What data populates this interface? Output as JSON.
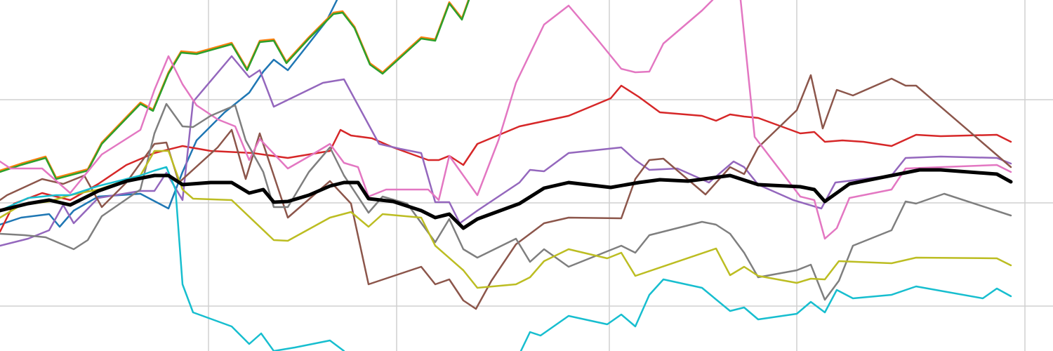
{
  "chart_data": {
    "type": "line",
    "grid": true,
    "xlim": [
      0,
      1500
    ],
    "xticks": [
      297,
      565,
      868,
      1135,
      1460
    ],
    "ylim": [
      0,
      500
    ],
    "yticks": [
      64,
      211,
      358
    ],
    "series": [
      {
        "color": "#1f77b4",
        "width": 2.5,
        "x": [
          0,
          30,
          70,
          85,
          105,
          140,
          200,
          240,
          260,
          280,
          320,
          355,
          375,
          390,
          410,
          440,
          465,
          480
        ],
        "values": [
          180,
          190,
          195,
          177,
          200,
          220,
          224,
          203,
          255,
          300,
          340,
          368,
          398,
          415,
          400,
          438,
          470,
          500
        ]
      },
      {
        "color": "#ff7f0e",
        "width": 2.5,
        "x": [
          0,
          30,
          65,
          80,
          125,
          145,
          200,
          218,
          240,
          258,
          280,
          330,
          352,
          370,
          390,
          408,
          440,
          475,
          488,
          505,
          527,
          545,
          600,
          620,
          640,
          658,
          668
        ],
        "values": [
          257,
          267,
          277,
          247,
          259,
          297,
          354,
          344,
          397,
          427,
          425,
          439,
          402,
          442,
          444,
          412,
          447,
          482,
          484,
          462,
          410,
          397,
          447,
          444,
          497,
          474,
          502
        ]
      },
      {
        "color": "#2ca02c",
        "width": 2.5,
        "x": [
          0,
          30,
          65,
          80,
          125,
          145,
          200,
          218,
          240,
          258,
          280,
          330,
          352,
          370,
          390,
          408,
          440,
          475,
          488,
          505,
          527,
          545,
          600,
          620,
          640,
          658,
          668
        ],
        "values": [
          255,
          265,
          275,
          245,
          257,
          295,
          352,
          342,
          395,
          425,
          423,
          437,
          400,
          440,
          442,
          410,
          445,
          480,
          482,
          460,
          408,
          395,
          445,
          442,
          495,
          472,
          500
        ]
      },
      {
        "color": "#d62728",
        "width": 2.5,
        "x": [
          0,
          20,
          60,
          100,
          140,
          180,
          220,
          260,
          300,
          360,
          410,
          470,
          485,
          500,
          530,
          560,
          610,
          625,
          640,
          660,
          680,
          740,
          810,
          870,
          885,
          910,
          940,
          1000,
          1020,
          1040,
          1060,
          1080,
          1140,
          1160,
          1175,
          1200,
          1230,
          1270,
          1305,
          1340,
          1420,
          1440
        ],
        "values": [
          170,
          210,
          225,
          215,
          238,
          265,
          282,
          292,
          285,
          282,
          275,
          285,
          315,
          307,
          303,
          290,
          272,
          272,
          278,
          265,
          295,
          320,
          335,
          360,
          378,
          362,
          340,
          335,
          328,
          337,
          334,
          332,
          310,
          312,
          298,
          300,
          298,
          292,
          308,
          306,
          308,
          298
        ]
      },
      {
        "color": "#9467bd",
        "width": 2.5,
        "x": [
          0,
          40,
          70,
          90,
          105,
          140,
          200,
          220,
          237,
          260,
          275,
          330,
          355,
          370,
          390,
          460,
          490,
          540,
          570,
          600,
          620,
          640,
          655,
          680,
          740,
          755,
          775,
          810,
          885,
          905,
          925,
          965,
          1010,
          1045,
          1060,
          1080,
          1130,
          1170,
          1190,
          1270,
          1290,
          1340,
          1420,
          1440
        ],
        "values": [
          150,
          160,
          172,
          208,
          182,
          218,
          228,
          228,
          254,
          215,
          355,
          420,
          390,
          400,
          348,
          382,
          387,
          295,
          288,
          282,
          212,
          212,
          182,
          200,
          240,
          258,
          256,
          282,
          290,
          272,
          258,
          260,
          240,
          270,
          262,
          237,
          215,
          203,
          240,
          250,
          275,
          277,
          275,
          267
        ]
      },
      {
        "color": "#8c564b",
        "width": 2.5,
        "x": [
          0,
          10,
          60,
          90,
          120,
          145,
          180,
          220,
          237,
          255,
          310,
          330,
          350,
          370,
          390,
          410,
          470,
          500,
          525,
          600,
          620,
          640,
          660,
          678,
          700,
          735,
          775,
          810,
          885,
          905,
          925,
          945,
          1005,
          1040,
          1060,
          1080,
          1135,
          1155,
          1172,
          1192,
          1215,
          1270,
          1290,
          1305,
          1440
        ],
        "values": [
          215,
          222,
          245,
          238,
          250,
          205,
          240,
          295,
          297,
          240,
          290,
          315,
          245,
          310,
          250,
          190,
          242,
          210,
          95,
          120,
          95,
          102,
          72,
          60,
          100,
          152,
          182,
          190,
          189,
          245,
          272,
          274,
          223,
          262,
          252,
          290,
          343,
          393,
          317,
          372,
          364,
          388,
          378,
          378,
          262
        ]
      },
      {
        "color": "#e377c2",
        "width": 2.5,
        "x": [
          0,
          15,
          60,
          100,
          145,
          200,
          220,
          240,
          260,
          280,
          310,
          335,
          355,
          370,
          410,
          445,
          470,
          490,
          510,
          525,
          550,
          610,
          625,
          640,
          680,
          710,
          735,
          775,
          810,
          850,
          885,
          905,
          925,
          945,
          1000,
          1015,
          1035,
          1055,
          1075,
          1140,
          1160,
          1175,
          1192,
          1210,
          1270,
          1290,
          1420,
          1440
        ],
        "values": [
          270,
          260,
          260,
          225,
          280,
          315,
          372,
          420,
          380,
          350,
          330,
          320,
          272,
          302,
          260,
          280,
          295,
          268,
          262,
          220,
          230,
          230,
          215,
          278,
          222,
          300,
          382,
          465,
          492,
          445,
          402,
          397,
          398,
          438,
          485,
          500,
          null,
          500,
          305,
          220,
          215,
          160,
          175,
          218,
          230,
          260,
          265,
          255
        ]
      },
      {
        "color": "#7f7f7f",
        "width": 2.5,
        "x": [
          0,
          35,
          65,
          105,
          125,
          145,
          200,
          220,
          237,
          260,
          275,
          300,
          335,
          350,
          375,
          390,
          410,
          440,
          470,
          490,
          525,
          545,
          580,
          620,
          640,
          660,
          680,
          735,
          755,
          775,
          810,
          885,
          905,
          925,
          1000,
          1020,
          1040,
          1060,
          1080,
          1135,
          1155,
          1175,
          1195,
          1215,
          1270,
          1290,
          1305,
          1345,
          1440
        ],
        "values": [
          167,
          165,
          162,
          145,
          158,
          192,
          230,
          310,
          352,
          320,
          319,
          335,
          350,
          300,
          255,
          205,
          205,
          255,
          290,
          250,
          197,
          220,
          210,
          155,
          188,
          145,
          133,
          160,
          127,
          145,
          120,
          150,
          140,
          165,
          184,
          180,
          167,
          140,
          105,
          115,
          123,
          73,
          100,
          150,
          172,
          213,
          210,
          224,
          193
        ]
      },
      {
        "color": "#bcbd22",
        "width": 2.5,
        "x": [
          0,
          30,
          70,
          100,
          140,
          200,
          220,
          240,
          260,
          275,
          330,
          390,
          410,
          470,
          500,
          525,
          545,
          600,
          620,
          660,
          680,
          735,
          755,
          775,
          810,
          865,
          885,
          905,
          1020,
          1040,
          1060,
          1080,
          1135,
          1155,
          1175,
          1195,
          1270,
          1305,
          1420,
          1440
        ],
        "values": [
          190,
          208,
          213,
          222,
          230,
          250,
          285,
          285,
          230,
          217,
          215,
          158,
          157,
          190,
          198,
          177,
          195,
          190,
          150,
          115,
          90,
          95,
          105,
          128,
          145,
          132,
          140,
          107,
          146,
          108,
          120,
          107,
          97,
          103,
          102,
          128,
          125,
          133,
          132,
          122
        ]
      },
      {
        "color": "#17becf",
        "width": 2.5,
        "x": [
          0,
          40,
          80,
          100,
          140,
          200,
          220,
          237,
          250,
          260,
          275,
          330,
          355,
          372,
          390,
          420,
          470,
          490,
          600,
          742,
          755,
          770,
          810,
          865,
          885,
          905,
          925,
          945,
          1000,
          1040,
          1060,
          1080,
          1135,
          1155,
          1175,
          1192,
          1215,
          1270,
          1305,
          1400,
          1420,
          1440
        ],
        "values": [
          200,
          218,
          222,
          222,
          235,
          250,
          257,
          262,
          230,
          95,
          55,
          35,
          10,
          25,
          0,
          5,
          15,
          0,
          null,
          0,
          27,
          22,
          50,
          38,
          52,
          35,
          80,
          102,
          90,
          57,
          62,
          45,
          53,
          70,
          55,
          87,
          75,
          80,
          92,
          75,
          89,
          78
        ]
      },
      {
        "color": "#000000",
        "width": 5,
        "x": [
          0,
          40,
          70,
          100,
          140,
          180,
          220,
          240,
          260,
          300,
          330,
          355,
          375,
          390,
          410,
          440,
          470,
          490,
          510,
          525,
          560,
          600,
          620,
          640,
          660,
          680,
          740,
          775,
          810,
          870,
          910,
          940,
          980,
          1040,
          1080,
          1140,
          1160,
          1175,
          1210,
          1270,
          1310,
          1340,
          1420,
          1440
        ],
        "values": [
          200,
          210,
          215,
          208,
          228,
          242,
          250,
          250,
          237,
          240,
          240,
          225,
          230,
          212,
          213,
          222,
          235,
          240,
          240,
          217,
          213,
          200,
          190,
          195,
          175,
          188,
          210,
          232,
          240,
          233,
          240,
          244,
          242,
          250,
          237,
          234,
          230,
          213,
          238,
          250,
          258,
          258,
          252,
          241
        ]
      }
    ]
  }
}
